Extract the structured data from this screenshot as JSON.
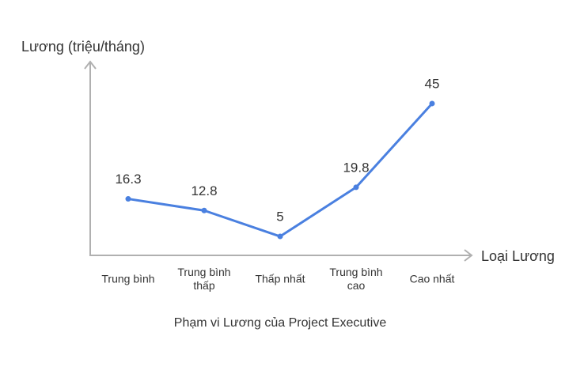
{
  "chart_data": {
    "type": "line",
    "title": "Phạm vi Lương của Project Executive",
    "y_label": "Lương (triệu/tháng)",
    "x_label": "Loại Lương",
    "categories": [
      "Trung bình",
      "Trung bình\nthấp",
      "Thấp nhất",
      "Trung bình\ncao",
      "Cao nhất"
    ],
    "values": [
      16.3,
      12.8,
      5,
      19.8,
      45
    ],
    "color": "#4a80e0",
    "ylim": [
      -0.7,
      57.6
    ]
  }
}
